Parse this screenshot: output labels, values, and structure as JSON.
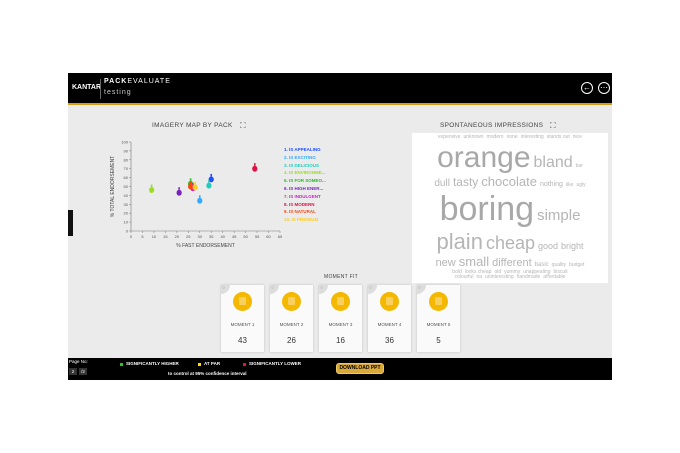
{
  "header": {
    "brand": "KANTAR",
    "product_bold": "PACK",
    "product_rest": "EVALUATE",
    "subtitle": "testing",
    "back_icon": "back-arrow-icon",
    "more_icon": "more-icon"
  },
  "imagery": {
    "title": "IMAGERY MAP BY PACK"
  },
  "chart_data": {
    "type": "scatter",
    "title": "IMAGERY MAP BY PACK",
    "xlabel": "% FAST ENDORSEMENT",
    "ylabel": "% TOTAL ENDORSEMENT",
    "xlim": [
      0,
      65
    ],
    "ylim": [
      0,
      100
    ],
    "xticks": [
      "0",
      "5",
      "10",
      "15",
      "20",
      "25",
      "30",
      "35",
      "40",
      "45",
      "50",
      "55",
      "60",
      "65"
    ],
    "yticks": [
      "0",
      "10",
      "20",
      "30",
      "40",
      "50",
      "60",
      "70",
      "80",
      "90",
      "100"
    ],
    "legend_position": "right",
    "series": [
      {
        "name": "1. IS APPEALING",
        "color": "#1f4fff",
        "x": 35,
        "y": 58
      },
      {
        "name": "2. IS EXCITING",
        "color": "#33aaff",
        "x": 30,
        "y": 34
      },
      {
        "name": "3. IS DELICIOUS",
        "color": "#22ccbb",
        "x": 34,
        "y": 51
      },
      {
        "name": "4. IS ENVIRONME...",
        "color": "#99dd22",
        "x": 9,
        "y": 46
      },
      {
        "name": "5. IS FOR SOMEO...",
        "color": "#22bb22",
        "x": 26,
        "y": 53
      },
      {
        "name": "6. IS HIGH ENER...",
        "color": "#7722bb",
        "x": 21,
        "y": 43
      },
      {
        "name": "7. IS INDULGENT",
        "color": "#cc22cc",
        "x": 27,
        "y": 48
      },
      {
        "name": "8. IS MODERN",
        "color": "#dd1144",
        "x": 54,
        "y": 70
      },
      {
        "name": "9. IS NATURAL",
        "color": "#ff4411",
        "x": 26,
        "y": 50
      },
      {
        "name": "10. IS PREMIUM",
        "color": "#ffcc22",
        "x": 28,
        "y": 49
      }
    ]
  },
  "impressions": {
    "title": "SPONTANEOUS IMPRESSIONS",
    "words": [
      "orange",
      "boring",
      "plain",
      "bland",
      "chocolate",
      "cheap",
      "simple",
      "tasty",
      "small",
      "different",
      "new",
      "bright",
      "good",
      "dull",
      "nothing",
      "basic",
      "expensive",
      "unknown",
      "modern",
      "none",
      "interesting",
      "stands out",
      "nice",
      "bar",
      "like",
      "ugly",
      "quality",
      "budget",
      "bold",
      "looks cheap",
      "old",
      "yummy",
      "unappealing",
      "biscuit",
      "colourful",
      "na",
      "uninteresting",
      "handmade",
      "affordable"
    ]
  },
  "moment_fit": {
    "title": "MOMENT FIT",
    "cards": [
      {
        "label": "MOMENT 1",
        "value": "43"
      },
      {
        "label": "MOMENT 2",
        "value": "26"
      },
      {
        "label": "MOMENT 3",
        "value": "16"
      },
      {
        "label": "MOMENT 4",
        "value": "36"
      },
      {
        "label": "MOMENT 5",
        "value": "5"
      }
    ]
  },
  "footer": {
    "page_label": "Page No:",
    "page": "2",
    "total": "/2",
    "legend": [
      {
        "label": "SIGNIFICANTLY HIGHER",
        "color": "#22cc22"
      },
      {
        "label": "AT PAR",
        "color": "#ffdd00"
      },
      {
        "label": "SIGNIFICANTLY LOWER",
        "color": "#ee1133"
      }
    ],
    "note": "to control at 95% confidence interval",
    "download": "DOWNLOAD PPT"
  }
}
